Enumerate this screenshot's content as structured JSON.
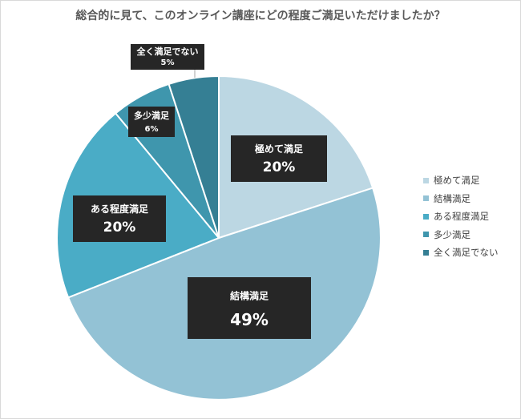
{
  "chart_data": {
    "type": "pie",
    "title": "総合的に見て、このオンライン講座にどの程度ご満足いただけましたか？",
    "slices": [
      {
        "label": "極めて満足",
        "value": 20,
        "value_label": "20%",
        "color": "#bcd7e3"
      },
      {
        "label": "結構満足",
        "value": 49,
        "value_label": "49%",
        "color": "#93c2d5"
      },
      {
        "label": "ある程度満足",
        "value": 20,
        "value_label": "20%",
        "color": "#4aacc6"
      },
      {
        "label": "多少満足",
        "value": 6,
        "value_label": "6%",
        "color": "#3f96ad"
      },
      {
        "label": "全く満足でない",
        "value": 5,
        "value_label": "5%",
        "color": "#357f94"
      }
    ],
    "start_angle_deg": 0,
    "direction": "clockwise",
    "legend_position": "right",
    "label_style": "dark boxes with white text"
  }
}
